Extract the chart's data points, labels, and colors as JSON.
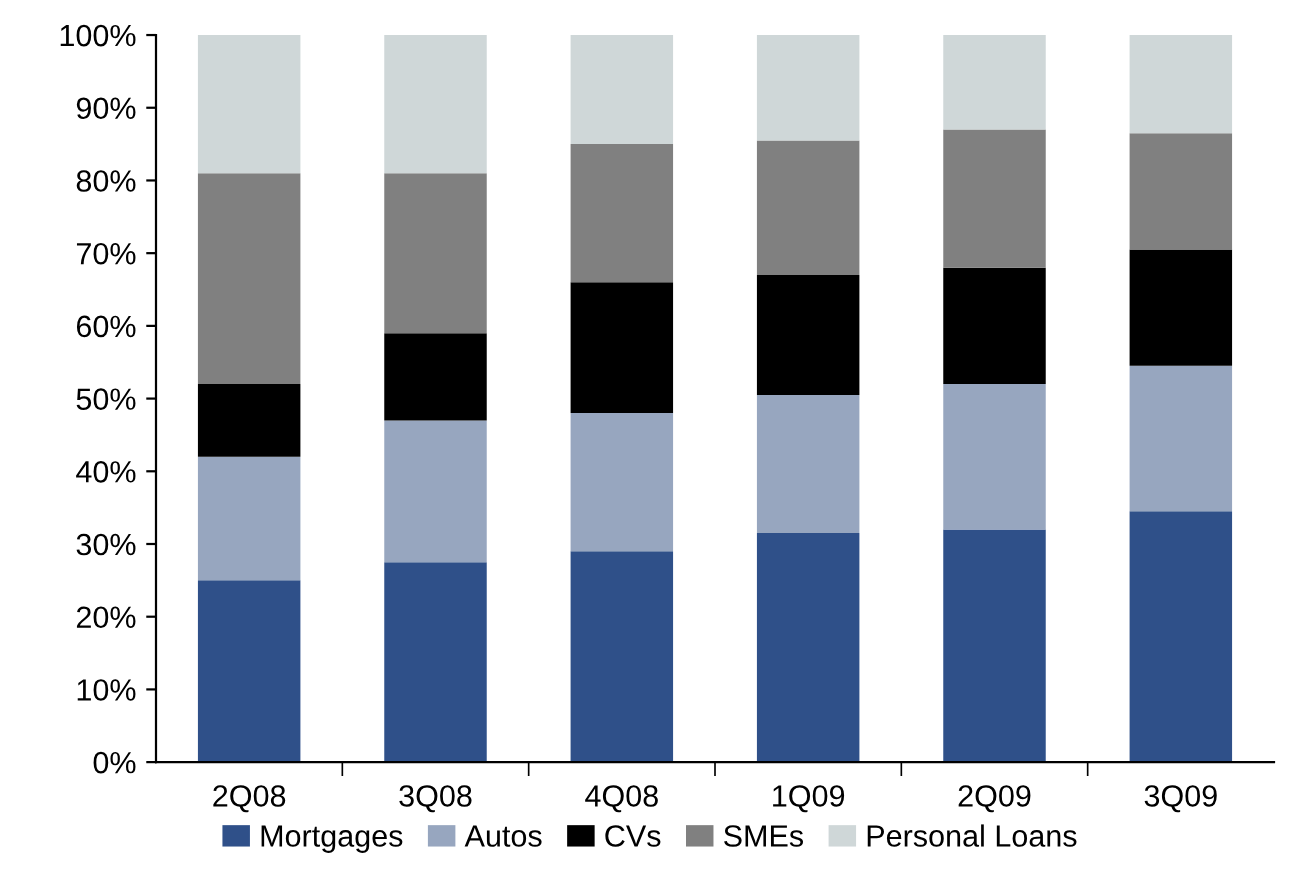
{
  "chart_data": {
    "type": "bar",
    "stacked": true,
    "categories": [
      "2Q08",
      "3Q08",
      "4Q08",
      "1Q09",
      "2Q09",
      "3Q09"
    ],
    "series": [
      {
        "name": "Mortgages",
        "color": "#2f5089",
        "values": [
          25,
          27.5,
          29,
          31.5,
          32,
          34.5
        ]
      },
      {
        "name": "Autos",
        "color": "#97a6bf",
        "values": [
          17,
          19.5,
          19,
          19,
          20,
          20
        ]
      },
      {
        "name": "CVs",
        "color": "#000000",
        "values": [
          10,
          12,
          18,
          16.5,
          16,
          16
        ]
      },
      {
        "name": "SMEs",
        "color": "#808080",
        "values": [
          29,
          22,
          19,
          18.5,
          19,
          16
        ]
      },
      {
        "name": "Personal Loans",
        "color": "#cfd7d8",
        "values": [
          19,
          19,
          15,
          14.5,
          13,
          13.5
        ]
      }
    ],
    "ylim": [
      0,
      100
    ],
    "yticks": [
      {
        "value": 0,
        "label": "0%"
      },
      {
        "value": 10,
        "label": "10%"
      },
      {
        "value": 20,
        "label": "20%"
      },
      {
        "value": 30,
        "label": "30%"
      },
      {
        "value": 40,
        "label": "40%"
      },
      {
        "value": 50,
        "label": "50%"
      },
      {
        "value": 60,
        "label": "60%"
      },
      {
        "value": 70,
        "label": "70%"
      },
      {
        "value": 80,
        "label": "80%"
      },
      {
        "value": 90,
        "label": "90%"
      },
      {
        "value": 100,
        "label": "100%"
      }
    ],
    "grid": false,
    "legend": "bottom"
  }
}
